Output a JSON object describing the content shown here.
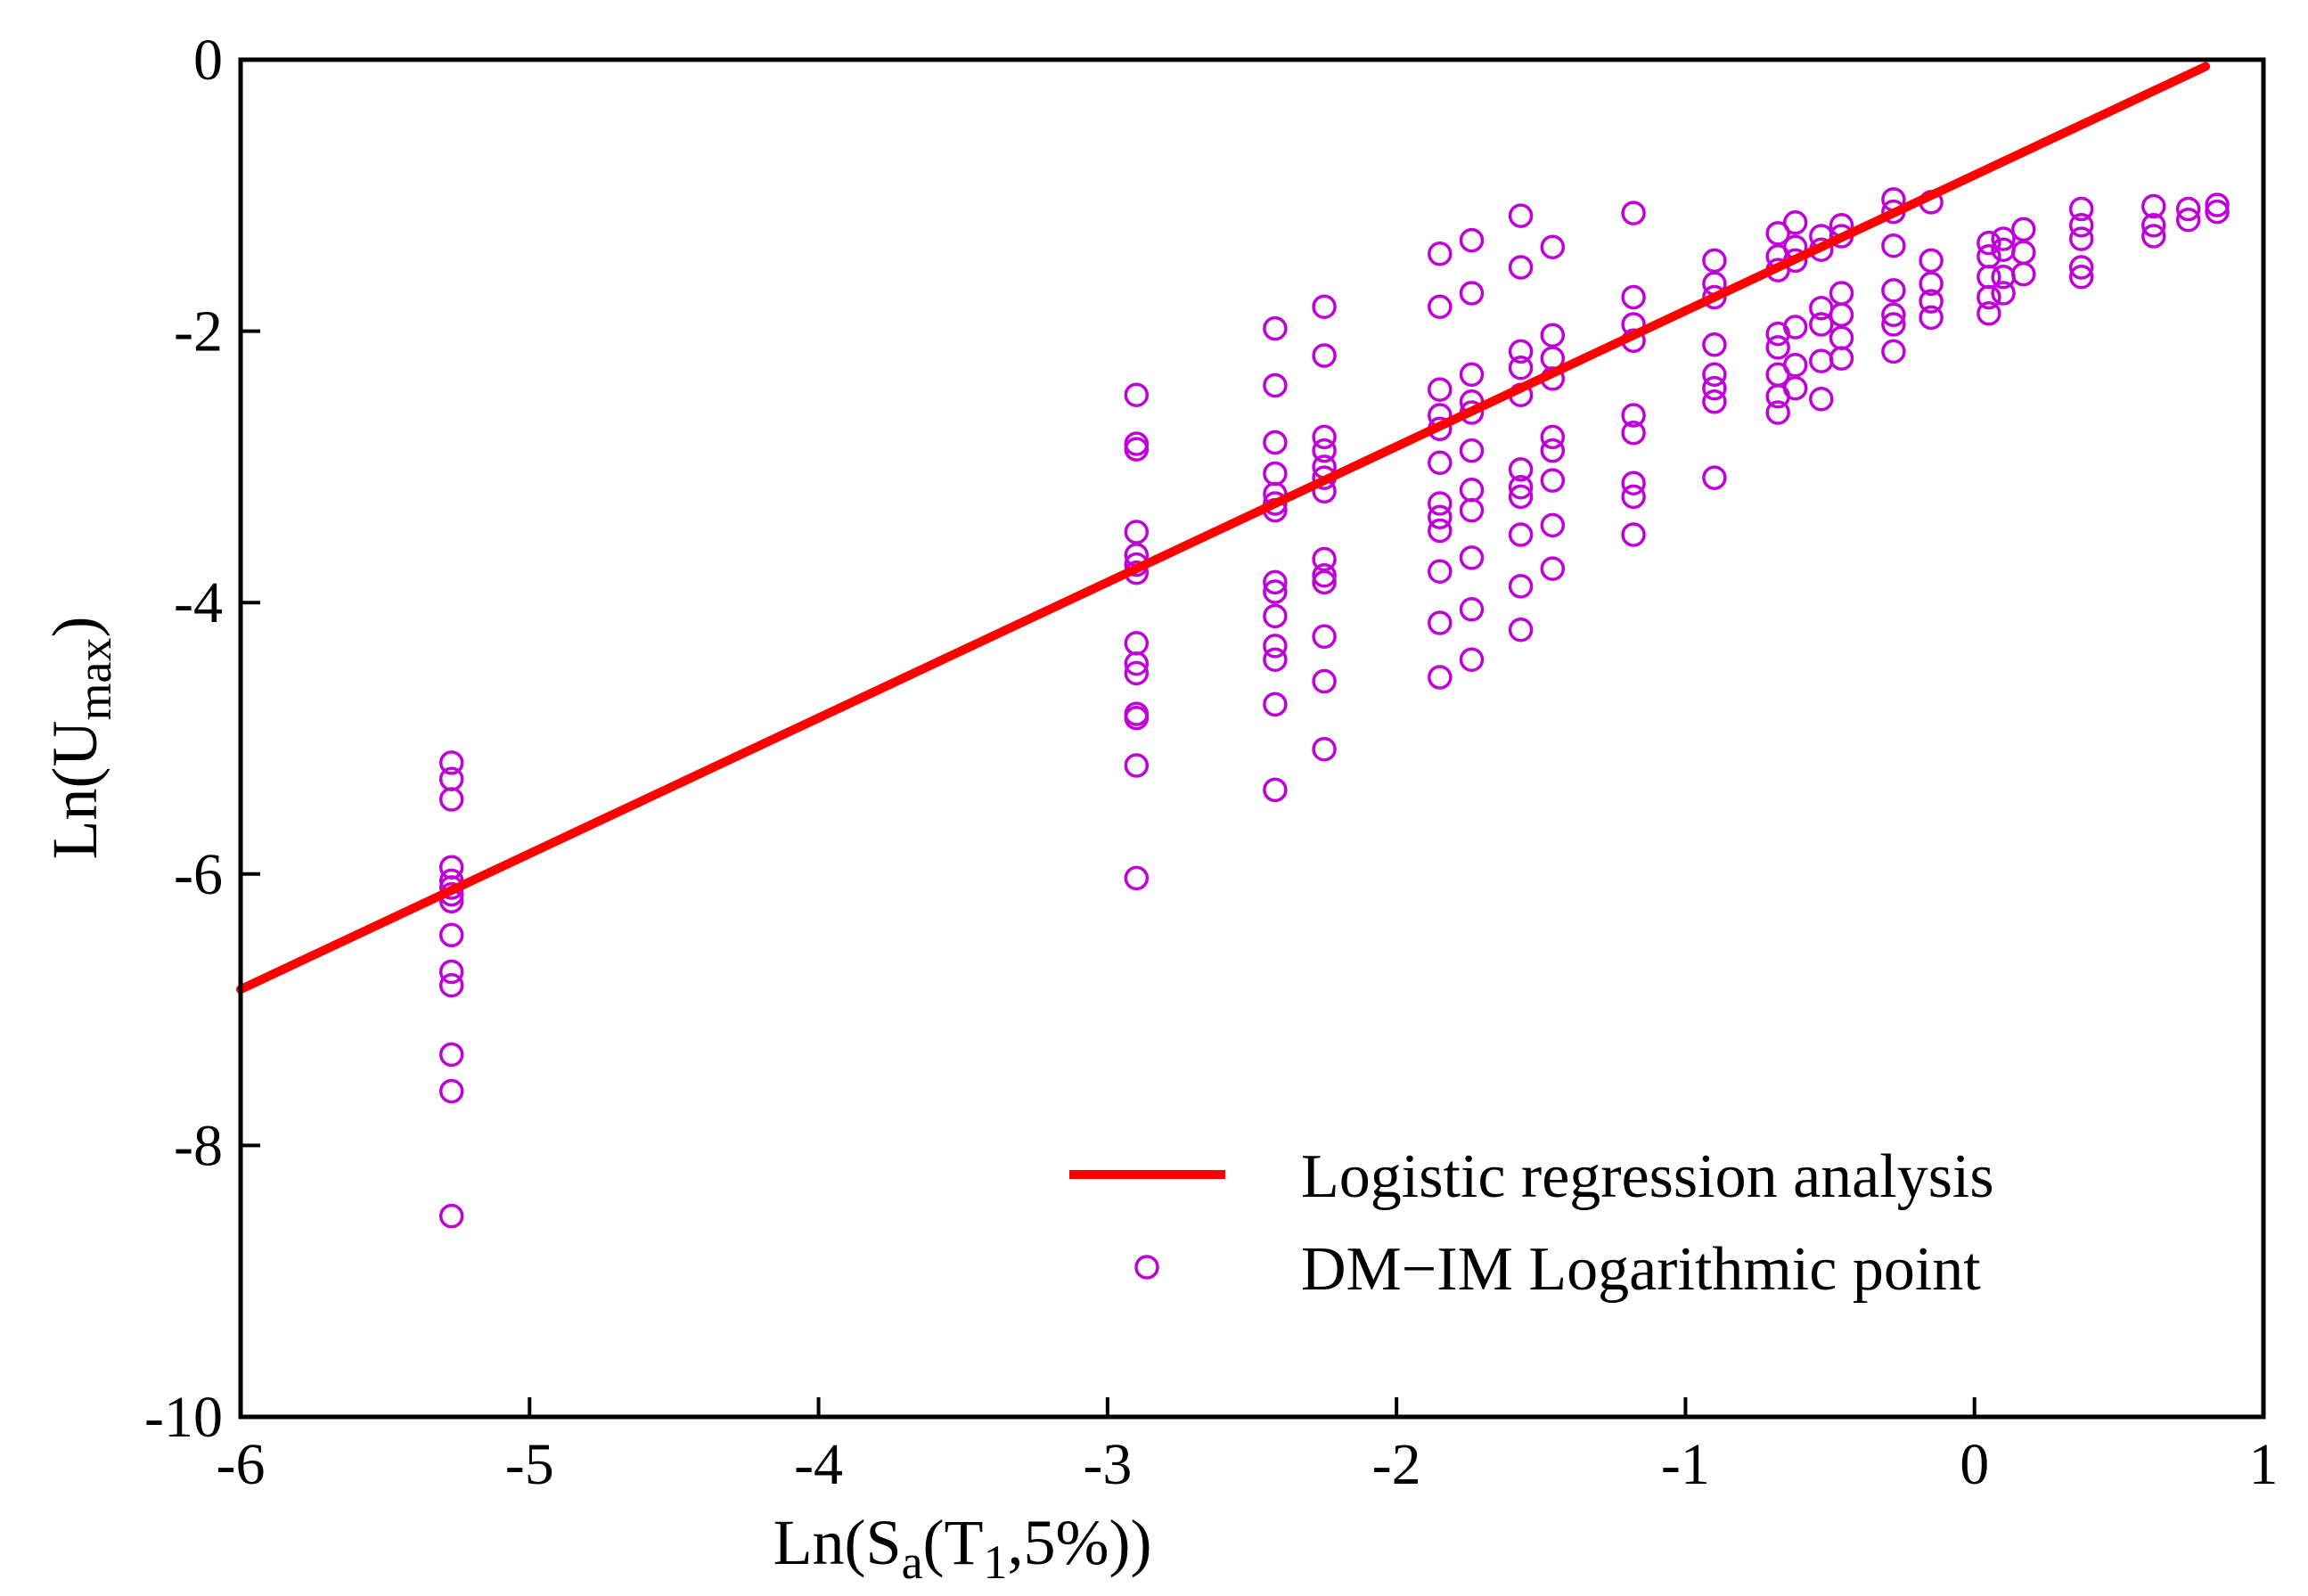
{
  "chart_data": {
    "type": "scatter",
    "title": "",
    "xlabel": {
      "prefix": "Ln(S",
      "sub1": "a",
      "mid": "(T",
      "sub2": "1",
      "suffix": ",5%))"
    },
    "ylabel": {
      "prefix": "Ln(U",
      "sub": "max",
      "suffix": ")"
    },
    "xlim": [
      -6,
      1
    ],
    "ylim": [
      -10,
      0
    ],
    "x_ticks": [
      -6,
      -5,
      -4,
      -3,
      -2,
      -1,
      0,
      1
    ],
    "y_ticks": [
      -10,
      -8,
      -6,
      -4,
      -2,
      0
    ],
    "x_tick_labels": [
      "-6",
      "-5",
      "-4",
      "-3",
      "-2",
      "-1",
      "0",
      "1"
    ],
    "y_tick_labels": [
      "-10",
      "-8",
      "-6",
      "-4",
      "-2",
      "0"
    ],
    "grid": false,
    "legend_position": "bottom-right",
    "colors": {
      "line": "#ff0000",
      "points": "#c000d8",
      "axes": "#000000"
    },
    "series": [
      {
        "name": "Logistic regression analysis",
        "kind": "line",
        "x": [
          -6,
          0.8
        ],
        "y": [
          -6.85,
          -0.05
        ]
      },
      {
        "name": "DM−IM Logarithmic point",
        "kind": "scatter",
        "points": [
          [
            -5.27,
            -5.18
          ],
          [
            -5.27,
            -5.3
          ],
          [
            -5.27,
            -5.45
          ],
          [
            -5.27,
            -5.95
          ],
          [
            -5.27,
            -6.05
          ],
          [
            -5.27,
            -6.1
          ],
          [
            -5.27,
            -6.15
          ],
          [
            -5.27,
            -6.2
          ],
          [
            -5.27,
            -6.45
          ],
          [
            -5.27,
            -6.72
          ],
          [
            -5.27,
            -6.82
          ],
          [
            -5.27,
            -7.33
          ],
          [
            -5.27,
            -7.6
          ],
          [
            -5.27,
            -8.52
          ],
          [
            -2.9,
            -2.47
          ],
          [
            -2.9,
            -2.83
          ],
          [
            -2.9,
            -2.87
          ],
          [
            -2.9,
            -3.48
          ],
          [
            -2.9,
            -3.65
          ],
          [
            -2.9,
            -3.72
          ],
          [
            -2.9,
            -3.78
          ],
          [
            -2.9,
            -4.3
          ],
          [
            -2.9,
            -4.45
          ],
          [
            -2.9,
            -4.52
          ],
          [
            -2.9,
            -4.82
          ],
          [
            -2.9,
            -4.85
          ],
          [
            -2.9,
            -5.2
          ],
          [
            -2.9,
            -6.03
          ],
          [
            -2.42,
            -1.98
          ],
          [
            -2.42,
            -2.4
          ],
          [
            -2.42,
            -2.82
          ],
          [
            -2.42,
            -3.05
          ],
          [
            -2.42,
            -3.2
          ],
          [
            -2.42,
            -3.27
          ],
          [
            -2.42,
            -3.32
          ],
          [
            -2.42,
            -3.85
          ],
          [
            -2.42,
            -3.92
          ],
          [
            -2.42,
            -4.1
          ],
          [
            -2.42,
            -4.32
          ],
          [
            -2.42,
            -4.42
          ],
          [
            -2.42,
            -4.75
          ],
          [
            -2.42,
            -5.38
          ],
          [
            -2.25,
            -1.82
          ],
          [
            -2.25,
            -2.18
          ],
          [
            -2.25,
            -2.78
          ],
          [
            -2.25,
            -2.88
          ],
          [
            -2.25,
            -3.0
          ],
          [
            -2.25,
            -3.08
          ],
          [
            -2.25,
            -3.18
          ],
          [
            -2.25,
            -3.68
          ],
          [
            -2.25,
            -3.8
          ],
          [
            -2.25,
            -3.85
          ],
          [
            -2.25,
            -4.25
          ],
          [
            -2.25,
            -4.58
          ],
          [
            -2.25,
            -5.08
          ],
          [
            -1.85,
            -1.43
          ],
          [
            -1.85,
            -1.82
          ],
          [
            -1.85,
            -2.43
          ],
          [
            -1.85,
            -2.62
          ],
          [
            -1.85,
            -2.72
          ],
          [
            -1.85,
            -2.97
          ],
          [
            -1.85,
            -3.27
          ],
          [
            -1.85,
            -3.37
          ],
          [
            -1.85,
            -3.47
          ],
          [
            -1.85,
            -3.77
          ],
          [
            -1.85,
            -4.15
          ],
          [
            -1.85,
            -4.55
          ],
          [
            -1.74,
            -1.33
          ],
          [
            -1.74,
            -1.72
          ],
          [
            -1.74,
            -2.32
          ],
          [
            -1.74,
            -2.52
          ],
          [
            -1.74,
            -2.6
          ],
          [
            -1.74,
            -2.88
          ],
          [
            -1.74,
            -3.17
          ],
          [
            -1.74,
            -3.32
          ],
          [
            -1.74,
            -3.67
          ],
          [
            -1.74,
            -4.05
          ],
          [
            -1.74,
            -4.42
          ],
          [
            -1.57,
            -1.15
          ],
          [
            -1.57,
            -1.53
          ],
          [
            -1.57,
            -2.15
          ],
          [
            -1.57,
            -2.27
          ],
          [
            -1.57,
            -2.47
          ],
          [
            -1.57,
            -3.02
          ],
          [
            -1.57,
            -3.15
          ],
          [
            -1.57,
            -3.22
          ],
          [
            -1.57,
            -3.5
          ],
          [
            -1.57,
            -3.88
          ],
          [
            -1.57,
            -4.2
          ],
          [
            -1.46,
            -1.38
          ],
          [
            -1.46,
            -2.03
          ],
          [
            -1.46,
            -2.2
          ],
          [
            -1.46,
            -2.35
          ],
          [
            -1.46,
            -2.78
          ],
          [
            -1.46,
            -2.88
          ],
          [
            -1.46,
            -3.1
          ],
          [
            -1.46,
            -3.43
          ],
          [
            -1.46,
            -3.75
          ],
          [
            -1.18,
            -1.13
          ],
          [
            -1.18,
            -1.75
          ],
          [
            -1.18,
            -1.95
          ],
          [
            -1.18,
            -2.07
          ],
          [
            -1.18,
            -2.62
          ],
          [
            -1.18,
            -2.75
          ],
          [
            -1.18,
            -3.12
          ],
          [
            -1.18,
            -3.22
          ],
          [
            -1.18,
            -3.5
          ],
          [
            -0.9,
            -1.48
          ],
          [
            -0.9,
            -1.65
          ],
          [
            -0.9,
            -1.75
          ],
          [
            -0.9,
            -2.1
          ],
          [
            -0.9,
            -2.32
          ],
          [
            -0.9,
            -2.42
          ],
          [
            -0.9,
            -2.52
          ],
          [
            -0.9,
            -3.08
          ],
          [
            -0.68,
            -1.28
          ],
          [
            -0.68,
            -1.45
          ],
          [
            -0.68,
            -1.55
          ],
          [
            -0.68,
            -2.02
          ],
          [
            -0.68,
            -2.12
          ],
          [
            -0.68,
            -2.32
          ],
          [
            -0.68,
            -2.48
          ],
          [
            -0.68,
            -2.6
          ],
          [
            -0.62,
            -1.2
          ],
          [
            -0.62,
            -1.38
          ],
          [
            -0.62,
            -1.48
          ],
          [
            -0.62,
            -1.97
          ],
          [
            -0.62,
            -2.25
          ],
          [
            -0.62,
            -2.42
          ],
          [
            -0.53,
            -1.3
          ],
          [
            -0.53,
            -1.4
          ],
          [
            -0.53,
            -1.83
          ],
          [
            -0.53,
            -1.95
          ],
          [
            -0.53,
            -2.22
          ],
          [
            -0.53,
            -2.5
          ],
          [
            -0.46,
            -1.22
          ],
          [
            -0.46,
            -1.3
          ],
          [
            -0.46,
            -1.72
          ],
          [
            -0.46,
            -1.88
          ],
          [
            -0.46,
            -2.05
          ],
          [
            -0.46,
            -2.2
          ],
          [
            -0.28,
            -1.03
          ],
          [
            -0.28,
            -1.12
          ],
          [
            -0.28,
            -1.37
          ],
          [
            -0.28,
            -1.7
          ],
          [
            -0.28,
            -1.88
          ],
          [
            -0.28,
            -1.95
          ],
          [
            -0.28,
            -2.15
          ],
          [
            -0.15,
            -1.05
          ],
          [
            -0.15,
            -1.48
          ],
          [
            -0.15,
            -1.65
          ],
          [
            -0.15,
            -1.78
          ],
          [
            -0.15,
            -1.9
          ],
          [
            0.05,
            -1.35
          ],
          [
            0.05,
            -1.45
          ],
          [
            0.05,
            -1.6
          ],
          [
            0.05,
            -1.75
          ],
          [
            0.05,
            -1.87
          ],
          [
            0.1,
            -1.32
          ],
          [
            0.1,
            -1.4
          ],
          [
            0.1,
            -1.6
          ],
          [
            0.1,
            -1.72
          ],
          [
            0.17,
            -1.25
          ],
          [
            0.17,
            -1.42
          ],
          [
            0.17,
            -1.58
          ],
          [
            0.37,
            -1.1
          ],
          [
            0.37,
            -1.22
          ],
          [
            0.37,
            -1.32
          ],
          [
            0.37,
            -1.53
          ],
          [
            0.37,
            -1.6
          ],
          [
            0.62,
            -1.08
          ],
          [
            0.62,
            -1.22
          ],
          [
            0.62,
            -1.3
          ],
          [
            0.74,
            -1.1
          ],
          [
            0.74,
            -1.18
          ],
          [
            0.84,
            -1.07
          ],
          [
            0.84,
            -1.12
          ]
        ]
      }
    ]
  }
}
